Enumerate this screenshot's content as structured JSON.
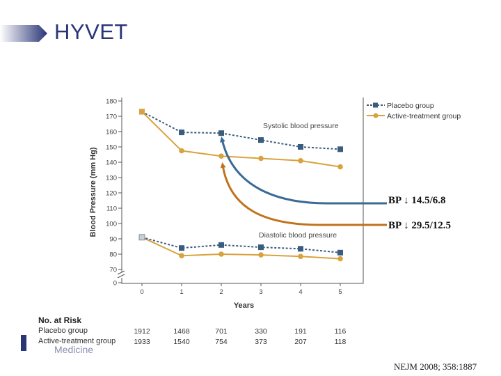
{
  "slide": {
    "title": "HYVET",
    "citation": "NEJM 2008; 358:1887",
    "logo_text": "Medicine"
  },
  "annotations": {
    "placebo_bp": "BP ↓ 14.5/6.8",
    "active_bp": "BP ↓ 29.5/12.5",
    "placebo_color": "#3a6a96",
    "active_color": "#c0721e"
  },
  "risk_table": {
    "heading": "No. at Risk",
    "rows": [
      {
        "label": "Placebo group",
        "values": [
          "1912",
          "1468",
          "701",
          "330",
          "191",
          "116"
        ]
      },
      {
        "label": "Active-treatment group",
        "values": [
          "1933",
          "1540",
          "754",
          "373",
          "207",
          "118"
        ]
      }
    ]
  },
  "chart_data": {
    "type": "line",
    "xlabel": "Years",
    "ylabel": "Blood Pressure (mm Hg)",
    "x": [
      0,
      1,
      2,
      3,
      4,
      5
    ],
    "xticks": [
      "0",
      "1",
      "2",
      "3",
      "4",
      "5"
    ],
    "yticks": [
      "0",
      "70",
      "80",
      "90",
      "100",
      "110",
      "120",
      "130",
      "140",
      "150",
      "160",
      "170",
      "180"
    ],
    "ylim": [
      70,
      180
    ],
    "axis_break": true,
    "grid": false,
    "legend_position": "top-right",
    "legend": [
      {
        "label": "Placebo group",
        "color": "#3a5d7e",
        "style": "dashed",
        "marker": "square"
      },
      {
        "label": "Active-treatment group",
        "color": "#d8a33e",
        "style": "solid",
        "marker": "circle"
      }
    ],
    "panel_labels": {
      "systolic": "Systolic blood pressure",
      "diastolic": "Diastolic blood pressure"
    },
    "series": [
      {
        "name": "Placebo group",
        "group": "systolic",
        "values": [
          173,
          159.5,
          159,
          154.5,
          150,
          148.5
        ]
      },
      {
        "name": "Active-treatment group",
        "group": "systolic",
        "values": [
          173,
          147.5,
          144,
          142.5,
          141,
          137
        ]
      },
      {
        "name": "Placebo group",
        "group": "diastolic",
        "values": [
          91,
          84,
          86,
          84.5,
          83.5,
          81
        ]
      },
      {
        "name": "Active-treatment group",
        "group": "diastolic",
        "values": [
          91,
          79,
          80,
          79.5,
          78.5,
          77
        ]
      }
    ]
  }
}
